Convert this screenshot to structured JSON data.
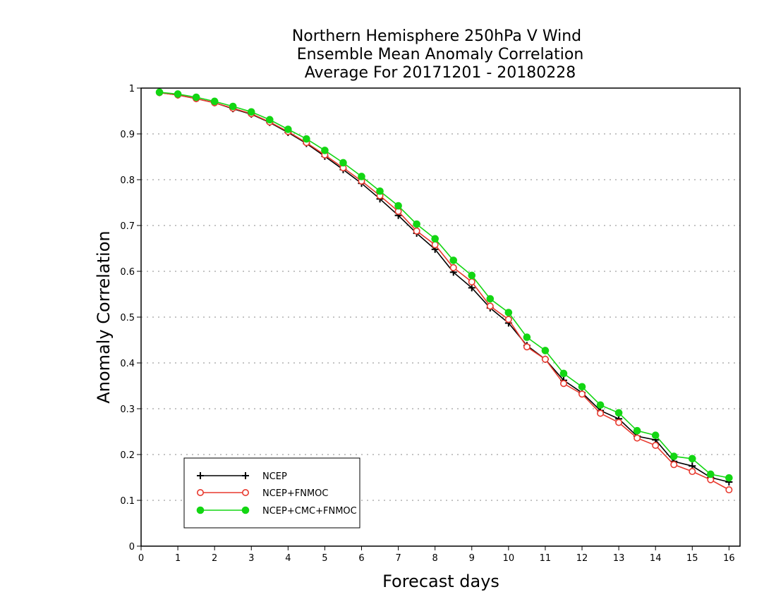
{
  "chart_data": {
    "type": "line",
    "title_lines": [
      "Northern Hemisphere 250hPa V Wind",
      "Ensemble Mean Anomaly Correlation",
      "Average For 20171201 - 20180228"
    ],
    "xlabel": "Forecast days",
    "ylabel": "Anomaly Correlation",
    "xlim": [
      0,
      16.3
    ],
    "ylim": [
      0,
      1
    ],
    "x_ticks": [
      0,
      1,
      2,
      3,
      4,
      5,
      6,
      7,
      8,
      9,
      10,
      11,
      12,
      13,
      14,
      15,
      16
    ],
    "y_ticks": [
      0,
      0.1,
      0.2,
      0.3,
      0.4,
      0.5,
      0.6,
      0.7,
      0.8,
      0.9,
      1
    ],
    "y_tick_labels": [
      "0",
      "0.1",
      "0.2",
      "0.3",
      "0.4",
      "0.5",
      "0.6",
      "0.7",
      "0.8",
      "0.9",
      "1"
    ],
    "grid": "horizontal dotted",
    "legend_position": "bottom-left",
    "x": [
      0.5,
      1,
      1.5,
      2,
      2.5,
      3,
      3.5,
      4,
      4.5,
      5,
      5.5,
      6,
      6.5,
      7,
      7.5,
      8,
      8.5,
      9,
      9.5,
      10,
      10.5,
      11,
      11.5,
      12,
      12.5,
      13,
      13.5,
      14,
      14.5,
      15,
      15.5,
      16
    ],
    "series": [
      {
        "name": "NCEP",
        "color": "#000000",
        "marker": "plus",
        "values": [
          0.99,
          0.985,
          0.977,
          0.968,
          0.955,
          0.943,
          0.925,
          0.903,
          0.879,
          0.851,
          0.822,
          0.792,
          0.758,
          0.722,
          0.683,
          0.648,
          0.598,
          0.564,
          0.52,
          0.487,
          0.438,
          0.408,
          0.362,
          0.335,
          0.296,
          0.278,
          0.24,
          0.232,
          0.185,
          0.175,
          0.15,
          0.14
        ]
      },
      {
        "name": "NCEP+FNMOC",
        "color": "#e8392e",
        "marker": "open-circle",
        "values": [
          0.99,
          0.985,
          0.977,
          0.968,
          0.956,
          0.944,
          0.926,
          0.905,
          0.881,
          0.854,
          0.826,
          0.797,
          0.765,
          0.731,
          0.688,
          0.658,
          0.608,
          0.577,
          0.524,
          0.495,
          0.435,
          0.408,
          0.355,
          0.332,
          0.29,
          0.27,
          0.236,
          0.22,
          0.178,
          0.163,
          0.145,
          0.123
        ]
      },
      {
        "name": "NCEP+CMC+FNMOC",
        "color": "#13d613",
        "marker": "filled-circle",
        "values": [
          0.991,
          0.987,
          0.98,
          0.971,
          0.96,
          0.948,
          0.931,
          0.91,
          0.889,
          0.864,
          0.837,
          0.807,
          0.775,
          0.743,
          0.703,
          0.671,
          0.624,
          0.591,
          0.54,
          0.51,
          0.456,
          0.427,
          0.377,
          0.348,
          0.308,
          0.291,
          0.252,
          0.242,
          0.196,
          0.191,
          0.157,
          0.149
        ]
      }
    ]
  }
}
